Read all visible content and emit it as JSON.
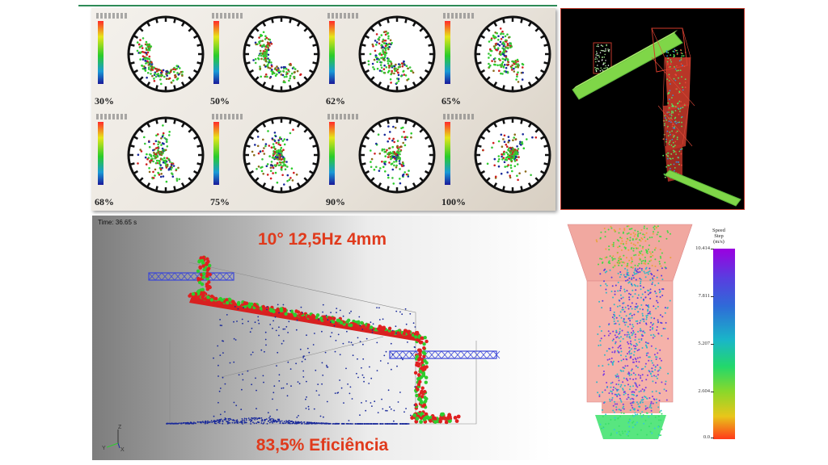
{
  "mill_grid": {
    "percentages": [
      "30%",
      "50%",
      "62%",
      "65%",
      "68%",
      "75%",
      "90%",
      "100%"
    ]
  },
  "screen_sim": {
    "time_label": "Time: 36.65 s",
    "params_title": "10° 12,5Hz 4mm",
    "efficiency": "83,5% Eficiência",
    "axis_labels": {
      "z": "Z",
      "y": "Y",
      "x": "X"
    }
  },
  "speed_legend": {
    "title_lines": [
      "Speed",
      "Step",
      "(m/s)"
    ],
    "ticks": [
      "10.414",
      "7.811",
      "5.207",
      "2.604",
      "0.0"
    ]
  },
  "colors": {
    "headline_red": "#e03a1c",
    "particle_red": "#e02020",
    "particle_green": "#2ecc2e",
    "particle_blue": "#1a2a9a",
    "frame_blue": "#3a46d8"
  }
}
